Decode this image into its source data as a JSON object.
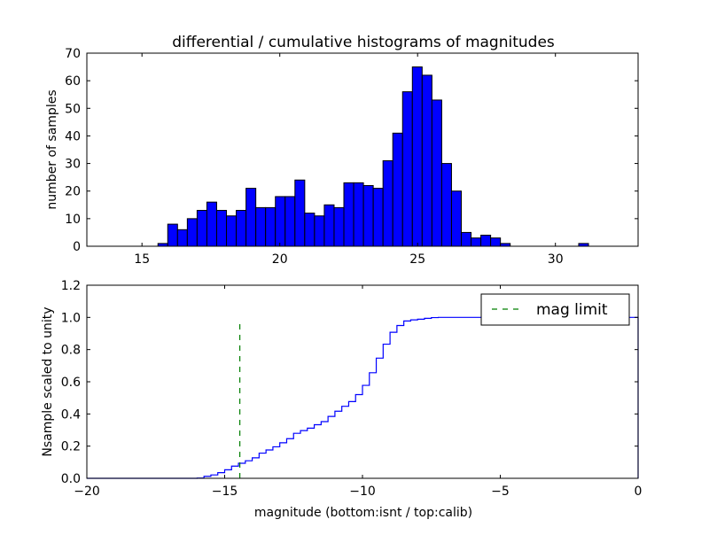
{
  "chart_data": [
    {
      "type": "bar",
      "title": "differential / cumulative histograms of magnitudes",
      "xlabel": "",
      "ylabel": "number of samples",
      "xlim": [
        13,
        33
      ],
      "ylim": [
        0,
        70
      ],
      "xticks": [
        15,
        20,
        25,
        30
      ],
      "yticks": [
        0,
        10,
        20,
        30,
        40,
        50,
        60,
        70
      ],
      "bin_start": 15.58,
      "bin_width": 0.355,
      "counts": [
        1,
        8,
        6,
        10,
        13,
        16,
        13,
        11,
        13,
        21,
        14,
        14,
        18,
        18,
        24,
        12,
        11,
        15,
        14,
        23,
        23,
        22,
        21,
        31,
        41,
        56,
        65,
        62,
        53,
        30,
        20,
        5,
        3,
        4,
        3,
        1,
        0,
        0,
        0,
        0,
        0,
        0,
        0,
        1
      ],
      "color": "#0000ff"
    },
    {
      "type": "line",
      "title": "",
      "xlabel": "magnitude (bottom:isnt / top:calib)",
      "ylabel": "Nsample scaled to unity",
      "xlim": [
        -20,
        0
      ],
      "ylim": [
        0,
        1.2
      ],
      "xticks": [
        -20,
        -15,
        -10,
        -5,
        0
      ],
      "yticks": [
        0.0,
        0.2,
        0.4,
        0.6,
        0.8,
        1.0,
        1.2
      ],
      "cdf_start": -16.0,
      "cdf_step": 0.25,
      "cdf_counts": [
        1,
        8,
        6,
        10,
        13,
        16,
        13,
        11,
        13,
        21,
        14,
        14,
        18,
        18,
        24,
        12,
        11,
        15,
        14,
        23,
        23,
        22,
        21,
        31,
        41,
        56,
        65,
        62,
        53,
        30,
        20,
        5,
        3,
        4,
        3,
        1
      ],
      "line_color": "#0000ff",
      "mag_limit": {
        "label": "mag limit",
        "x": -14.45,
        "y_range": [
          0,
          0.96
        ],
        "color": "#007f00"
      },
      "legend": "top-right"
    }
  ]
}
